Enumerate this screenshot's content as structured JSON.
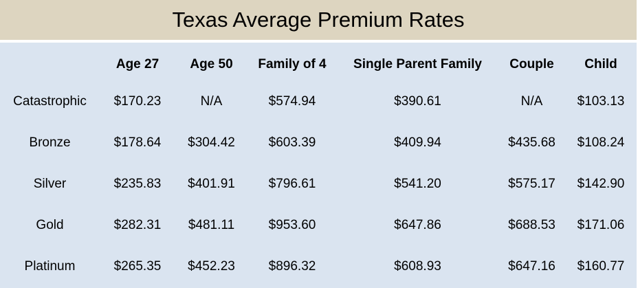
{
  "chart_data": {
    "type": "table",
    "title": "Texas Average Premium Rates",
    "columns": [
      "Age 27",
      "Age 50",
      "Family of 4",
      "Single Parent Family",
      "Couple",
      "Child"
    ],
    "rows": [
      {
        "label": "Catastrophic",
        "values": [
          "$170.23",
          "N/A",
          "$574.94",
          "$390.61",
          "N/A",
          "$103.13"
        ]
      },
      {
        "label": "Bronze",
        "values": [
          "$178.64",
          "$304.42",
          "$603.39",
          "$409.94",
          "$435.68",
          "$108.24"
        ]
      },
      {
        "label": "Silver",
        "values": [
          "$235.83",
          "$401.91",
          "$796.61",
          "$541.20",
          "$575.17",
          "$142.90"
        ]
      },
      {
        "label": "Gold",
        "values": [
          "$282.31",
          "$481.11",
          "$953.60",
          "$647.86",
          "$688.53",
          "$171.06"
        ]
      },
      {
        "label": "Platinum",
        "values": [
          "$265.35",
          "$452.23",
          "$896.32",
          "$608.93",
          "$647.16",
          "$160.77"
        ]
      }
    ],
    "layout": {
      "header_bold": true,
      "cell_alignment": "center",
      "grid": "off",
      "row_label_column_first": true
    }
  },
  "colors": {
    "title_bg": "#ddd5c0",
    "table_bg": "#dae4f0",
    "text": "#000000",
    "page_bg": "#ffffff"
  }
}
